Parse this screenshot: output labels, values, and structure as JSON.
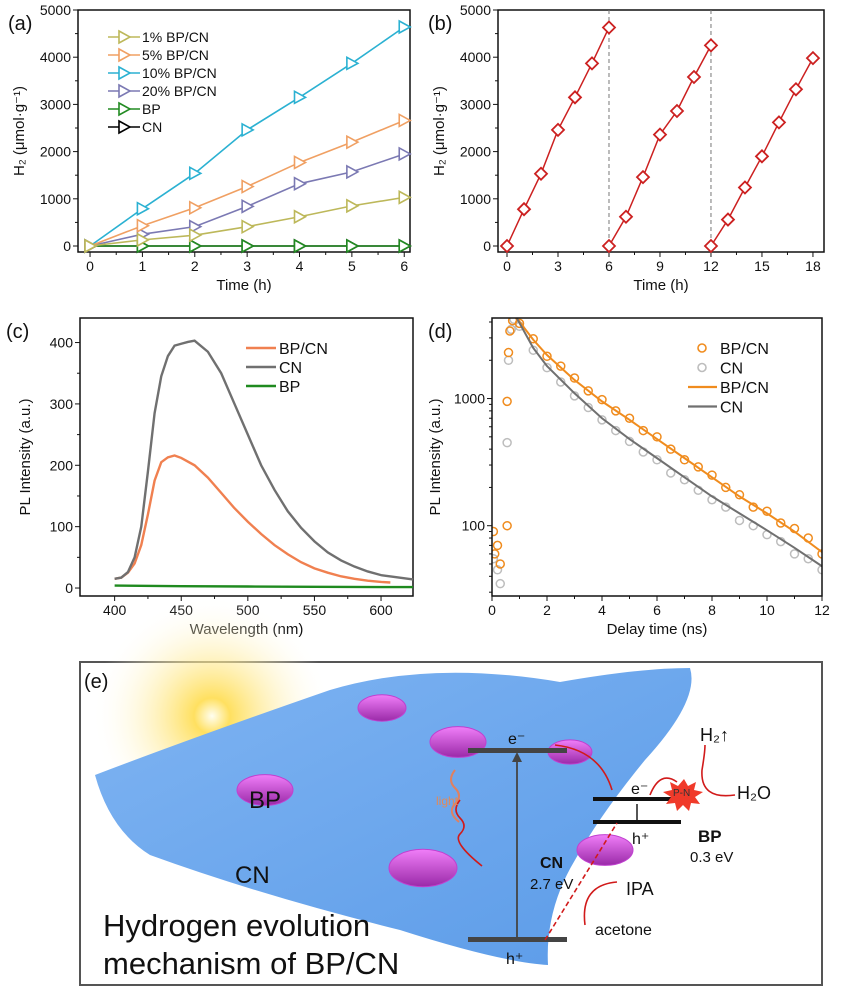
{
  "chart_data": [
    {
      "panel": "(a)",
      "type": "line",
      "xlabel": "Time (h)",
      "ylabel": "H₂ (μmol·g⁻¹)",
      "xlim": [
        -0.23,
        6.11
      ],
      "ylim": [
        -127,
        5000
      ],
      "xticks": [
        "0",
        "1",
        "2",
        "3",
        "4",
        "5",
        "6"
      ],
      "yticks": [
        "0",
        "1000",
        "2000",
        "3000",
        "4000",
        "5000"
      ],
      "legend_position": "top-left",
      "marker": "right-triangle",
      "x": [
        0,
        1,
        2,
        3,
        4,
        5,
        6
      ],
      "series": [
        {
          "name": "1%   BP/CN",
          "color": "#bdb85a",
          "values": [
            0,
            130,
            230,
            410,
            620,
            850,
            1030
          ]
        },
        {
          "name": "5%   BP/CN",
          "color": "#f0a063",
          "values": [
            0,
            430,
            810,
            1260,
            1770,
            2200,
            2660
          ]
        },
        {
          "name": "10% BP/CN",
          "color": "#2bb1d2",
          "values": [
            0,
            790,
            1540,
            2460,
            3150,
            3870,
            4640
          ]
        },
        {
          "name": "20% BP/CN",
          "color": "#7b79b3",
          "values": [
            0,
            250,
            410,
            840,
            1320,
            1570,
            1950
          ]
        },
        {
          "name": "BP",
          "color": "#228b22",
          "values": [
            0,
            0,
            0,
            0,
            0,
            0,
            0
          ]
        },
        {
          "name": "CN",
          "color": "#000000",
          "values": [
            0,
            0,
            0,
            0,
            0,
            0,
            0
          ]
        }
      ]
    },
    {
      "panel": "(b)",
      "type": "line",
      "xlabel": "Time (h)",
      "ylabel": "H₂ (μmol·g⁻¹)",
      "xlim": [
        -0.53,
        18.65
      ],
      "ylim": [
        -127,
        5000
      ],
      "xticks": [
        "0",
        "3",
        "6",
        "9",
        "12",
        "15",
        "18"
      ],
      "yticks": [
        "0",
        "1000",
        "2000",
        "3000",
        "4000",
        "5000"
      ],
      "marker": "diamond",
      "color": "#cc2020",
      "cycle_dividers": [
        6,
        12
      ],
      "series": [
        {
          "x": [
            0,
            1,
            2,
            3,
            4,
            5,
            6
          ],
          "values": [
            0,
            780,
            1530,
            2460,
            3150,
            3870,
            4630
          ]
        },
        {
          "x": [
            6,
            7,
            8,
            9,
            10,
            11,
            12
          ],
          "values": [
            0,
            620,
            1460,
            2360,
            2860,
            3580,
            4250
          ]
        },
        {
          "x": [
            12,
            13,
            14,
            15,
            16,
            17,
            18
          ],
          "values": [
            0,
            560,
            1240,
            1900,
            2620,
            3320,
            3980
          ]
        }
      ]
    },
    {
      "panel": "(c)",
      "type": "line",
      "xlabel": "Wavelength (nm)",
      "ylabel": "PL Intensity (a.u.)",
      "xlim": [
        374,
        624
      ],
      "ylim": [
        -13,
        440
      ],
      "xticks": [
        "400",
        "450",
        "500",
        "550",
        "600"
      ],
      "yticks": [
        "0",
        "100",
        "200",
        "300",
        "400"
      ],
      "legend_position": "top-right",
      "series": [
        {
          "name": "BP/CN",
          "color": "#f08050",
          "x": [
            400,
            405,
            410,
            415,
            420,
            425,
            430,
            435,
            440,
            445,
            450,
            460,
            470,
            480,
            490,
            500,
            510,
            520,
            530,
            540,
            550,
            560,
            570,
            580,
            590,
            600,
            607
          ],
          "values": [
            15,
            17,
            25,
            40,
            70,
            120,
            175,
            205,
            213,
            216,
            212,
            200,
            180,
            155,
            130,
            108,
            88,
            70,
            55,
            42,
            32,
            25,
            19,
            15,
            12,
            10,
            9
          ]
        },
        {
          "name": "CN",
          "color": "#707070",
          "x": [
            400,
            405,
            410,
            415,
            420,
            425,
            430,
            435,
            440,
            445,
            450,
            455,
            460,
            470,
            480,
            490,
            500,
            510,
            520,
            530,
            540,
            550,
            560,
            570,
            580,
            590,
            600,
            610,
            624
          ],
          "values": [
            15,
            17,
            26,
            50,
            100,
            190,
            285,
            345,
            378,
            395,
            398,
            401,
            403,
            385,
            350,
            300,
            250,
            200,
            160,
            125,
            98,
            76,
            58,
            45,
            35,
            27,
            21,
            18,
            14
          ]
        },
        {
          "name": "BP",
          "color": "#1f8a1f",
          "x": [
            400,
            450,
            500,
            550,
            600,
            624
          ],
          "values": [
            4,
            3,
            2.5,
            2,
            1.5,
            1.5
          ]
        }
      ]
    },
    {
      "panel": "(d)",
      "type": "scatter",
      "xlabel": "Delay time (ns)",
      "ylabel": "PL Intensity (a.u.)",
      "xlim": [
        0,
        12
      ],
      "ylim": [
        28,
        4300
      ],
      "yscale": "log",
      "xticks": [
        "0",
        "2",
        "4",
        "6",
        "8",
        "10",
        "12"
      ],
      "yticks": [
        "100",
        "1000"
      ],
      "legend_position": "top-right",
      "series": [
        {
          "name": "BP/CN",
          "kind": "scatter",
          "color": "#f08c1e",
          "x": [
            0.05,
            0.1,
            0.2,
            0.3,
            0.55,
            0.55,
            0.6,
            0.65,
            0.75,
            1,
            1.5,
            2,
            2.5,
            3,
            3.5,
            4,
            4.5,
            5,
            5.5,
            6,
            6.5,
            7,
            7.5,
            8,
            8.5,
            9,
            9.5,
            10,
            10.5,
            11,
            11.5,
            12
          ],
          "values": [
            90,
            60,
            70,
            50,
            100,
            950,
            2300,
            3400,
            4100,
            3900,
            2950,
            2150,
            1800,
            1450,
            1150,
            980,
            800,
            700,
            560,
            500,
            400,
            330,
            290,
            250,
            200,
            175,
            140,
            130,
            105,
            95,
            80,
            60
          ]
        },
        {
          "name": "CN",
          "kind": "scatter",
          "color": "#bdbdbd",
          "x": [
            0.05,
            0.2,
            0.3,
            0.55,
            0.6,
            0.7,
            0.8,
            1,
            1.5,
            2,
            2.5,
            3,
            3.5,
            4,
            4.5,
            5,
            5.5,
            6,
            6.5,
            7,
            7.5,
            8,
            8.5,
            9,
            9.5,
            10,
            10.5,
            11,
            11.5,
            12
          ],
          "values": [
            55,
            45,
            35,
            450,
            2000,
            3500,
            4200,
            3700,
            2400,
            1750,
            1350,
            1050,
            850,
            680,
            560,
            460,
            380,
            330,
            260,
            230,
            190,
            160,
            140,
            110,
            100,
            85,
            75,
            60,
            55,
            45
          ]
        },
        {
          "name": "BP/CN",
          "kind": "fit",
          "color": "#f08c1e",
          "x": [
            0.9,
            1.5,
            2,
            3,
            4,
            5,
            6,
            7,
            8,
            9,
            10,
            11,
            12
          ],
          "values": [
            4300,
            2900,
            2200,
            1400,
            950,
            680,
            480,
            340,
            240,
            170,
            125,
            90,
            62
          ]
        },
        {
          "name": "CN",
          "kind": "fit",
          "color": "#707070",
          "x": [
            0.9,
            1.5,
            2,
            3,
            4,
            5,
            6,
            7,
            8,
            9,
            10,
            11,
            12
          ],
          "values": [
            4300,
            2500,
            1800,
            1100,
            700,
            480,
            340,
            240,
            170,
            125,
            92,
            67,
            48
          ]
        }
      ]
    }
  ],
  "diagram": {
    "panel": "(e)",
    "sheet_label_bp": "BP",
    "sheet_label_cn": "CN",
    "light": "light",
    "cn_electron": "e⁻",
    "cn_hole": "h⁺",
    "bp_electron": "e⁻",
    "bp_hole": "h⁺",
    "cn_name": "CN",
    "cn_gap": "2.7 eV",
    "bp_name": "BP",
    "bp_gap": "0.3 eV",
    "junction": "P-N",
    "h2": "H₂↑",
    "h2o": "H₂O",
    "ipa": "IPA",
    "acetone": "acetone",
    "caption_line1": "Hydrogen evolution",
    "caption_line2": "mechanism of BP/CN",
    "colors": {
      "sheet": "#5b9be8",
      "flake": "#d24fe0",
      "arrow": "#d11a1a",
      "sun": "#ffd23c"
    }
  }
}
